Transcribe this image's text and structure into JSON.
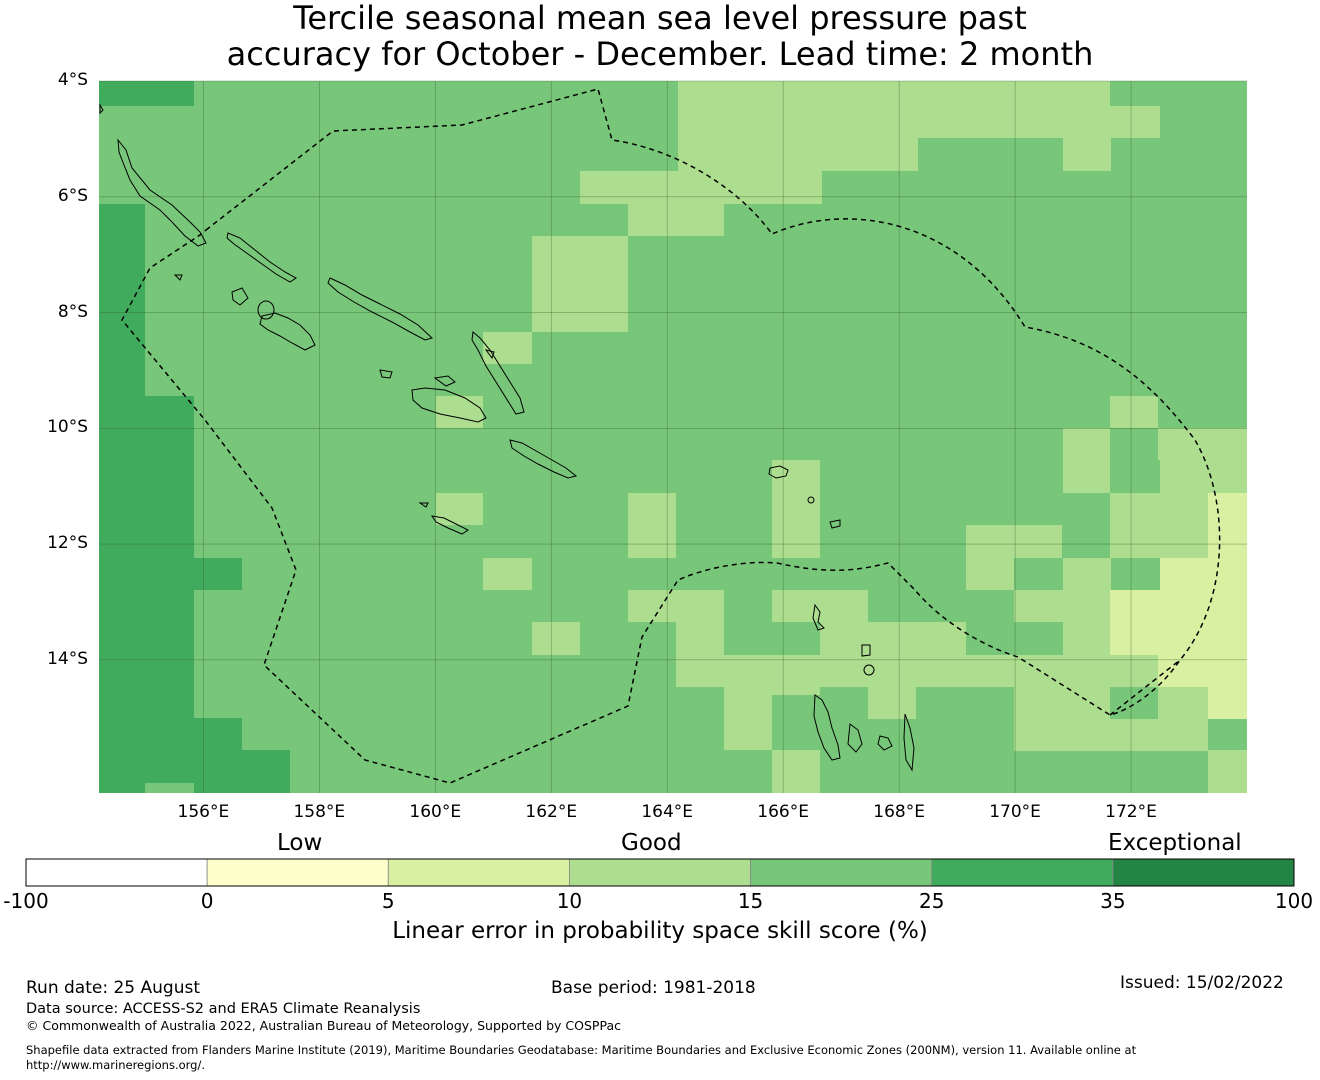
{
  "title": {
    "line1": "Tercile seasonal mean sea level pressure past",
    "line2": "accuracy for October - December. Lead time: 2 month"
  },
  "map": {
    "lon_range": [
      154.2,
      174.0
    ],
    "lat_range": [
      -16.3,
      -4.0
    ],
    "lat_labels": [
      "4°S",
      "6°S",
      "8°S",
      "10°S",
      "12°S",
      "14°S"
    ],
    "lat_values": [
      -4,
      -6,
      -8,
      -10,
      -12,
      -14
    ],
    "lon_labels": [
      "156°E",
      "158°E",
      "160°E",
      "162°E",
      "164°E",
      "166°E",
      "168°E",
      "170°E",
      "172°E"
    ],
    "lon_values": [
      156,
      158,
      160,
      162,
      164,
      166,
      168,
      170,
      172
    ],
    "grid_on": true,
    "boundary_style": "dashed",
    "colors": {
      "cat0": "#ffffff",
      "cat1": "#ffffcc",
      "cat2": "#d9f0a3",
      "cat3": "#addd8e",
      "cat4": "#78c679",
      "cat5": "#41ab5d",
      "cat6": "#238443"
    }
  },
  "colorbar": {
    "category_labels": {
      "low": "Low",
      "good": "Good",
      "exceptional": "Exceptional"
    },
    "ticks": [
      "-100",
      "0",
      "5",
      "10",
      "15",
      "25",
      "35",
      "100"
    ],
    "title": "Linear error in probability space skill score (%)"
  },
  "footer": {
    "run_date": "Run date: 25 August",
    "base_period": "Base period: 1981-2018",
    "issued": "Issued: 15/02/2022",
    "data_source": "Data source: ACCESS-S2 and ERA5 Climate Reanalysis",
    "copyright": "© Commonwealth of Australia 2022, Australian Bureau of Meteorology, Supported by COSPPac",
    "shapefile_line1": "Shapefile data extracted from Flanders Marine Institute (2019), Maritime Boundaries Geodatabase: Maritime Boundaries and Exclusive Economic Zones (200NM), version 11. Available online at",
    "shapefile_line2": "http://www.marineregions.org/."
  }
}
